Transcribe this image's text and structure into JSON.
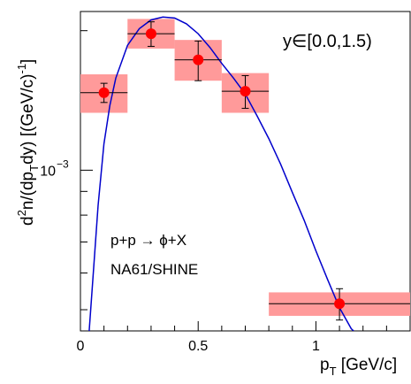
{
  "chart_data": {
    "type": "scatter",
    "annotation_range": "y∈[0.0,1.5)",
    "annotation_reaction": "p+p → ϕ+X",
    "annotation_experiment": "NA61/SHINE",
    "xlabel_main": "p",
    "xlabel_sub": "T",
    "xlabel_unit": " [GeV/c]",
    "ylabel_parts": {
      "p1": "d",
      "sup2": "2",
      "p2": "n/(dp",
      "subT": "T",
      "p3": "dy)  [(GeV/c)",
      "supm1": "-1",
      "p4": "]"
    },
    "xlim": [
      0,
      1.4
    ],
    "ylim": [
      0.00045,
      0.0022
    ],
    "y_scale": "log",
    "x_ticks": [
      {
        "value": 0,
        "label": "0"
      },
      {
        "value": 0.5,
        "label": "0.5"
      },
      {
        "value": 1,
        "label": "1"
      }
    ],
    "y_tick_label": {
      "value": 0.001,
      "base": "10",
      "exponent": "−3"
    },
    "points": [
      {
        "x": 0.1,
        "y": 0.00147,
        "x_low": 0.0,
        "x_high": 0.2,
        "err": 7e-05,
        "sys_low": 0.00133,
        "sys_high": 0.00161
      },
      {
        "x": 0.3,
        "y": 0.00197,
        "x_low": 0.2,
        "x_high": 0.4,
        "err": 0.00012,
        "sys_low": 0.00183,
        "sys_high": 0.00212
      },
      {
        "x": 0.5,
        "y": 0.00173,
        "x_low": 0.4,
        "x_high": 0.6,
        "err": 0.00017,
        "sys_low": 0.00156,
        "sys_high": 0.00191
      },
      {
        "x": 0.7,
        "y": 0.00148,
        "x_low": 0.6,
        "x_high": 0.8,
        "err": 0.00012,
        "sys_low": 0.00133,
        "sys_high": 0.00162
      },
      {
        "x": 1.1,
        "y": 0.000515,
        "x_low": 0.8,
        "x_high": 1.4,
        "err": 4e-05,
        "sys_low": 0.000485,
        "sys_high": 0.000545
      }
    ],
    "fit_curve": {
      "points": [
        [
          0.037,
          0.00045
        ],
        [
          0.05,
          0.000555
        ],
        [
          0.075,
          0.00084
        ],
        [
          0.1,
          0.00114
        ],
        [
          0.125,
          0.00138
        ],
        [
          0.15,
          0.00158
        ],
        [
          0.2,
          0.00186
        ],
        [
          0.25,
          0.00202
        ],
        [
          0.3,
          0.00211
        ],
        [
          0.35,
          0.00214
        ],
        [
          0.4,
          0.00213
        ],
        [
          0.45,
          0.00207
        ],
        [
          0.5,
          0.00197
        ],
        [
          0.55,
          0.00184
        ],
        [
          0.6,
          0.0017
        ],
        [
          0.65,
          0.00158
        ],
        [
          0.7,
          0.00146
        ],
        [
          0.75,
          0.00131
        ],
        [
          0.8,
          0.00117
        ],
        [
          0.85,
          0.00103
        ],
        [
          0.9,
          0.000895
        ],
        [
          0.95,
          0.00078
        ],
        [
          1.0,
          0.00067
        ],
        [
          1.05,
          0.00058
        ],
        [
          1.1,
          0.000505
        ],
        [
          1.15,
          0.000455
        ],
        [
          1.16,
          0.00045
        ]
      ]
    },
    "colors": {
      "marker": "#ff0000",
      "sys_box": "#ff9a9a",
      "error_bar": "#000000",
      "fit_curve": "#0000cc",
      "axis": "#000000"
    }
  }
}
